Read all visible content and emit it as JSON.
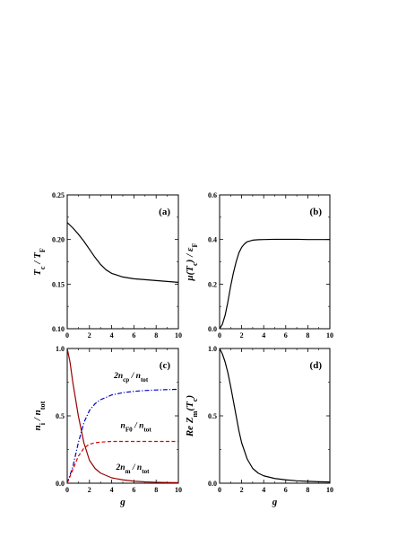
{
  "chart_data": [
    {
      "panel": "a",
      "type": "line",
      "tag": "(a)",
      "xlabel": "",
      "ylabel": "T_c / T_F",
      "xlim": [
        0,
        10
      ],
      "ylim": [
        0.1,
        0.25
      ],
      "xticks": [
        0,
        2,
        4,
        6,
        8,
        10
      ],
      "xtick_labels": [
        "0",
        "2",
        "4",
        "6",
        "8",
        "10"
      ],
      "yticks": [
        0.1,
        0.15,
        0.2,
        0.25
      ],
      "ytick_labels": [
        "0.10",
        "0.15",
        "0.20",
        "0.25"
      ],
      "series": [
        {
          "color": "#000000",
          "dash": "solid",
          "x": [
            0,
            0.5,
            1,
            1.5,
            2,
            2.5,
            3,
            3.5,
            4,
            5,
            6,
            7,
            8,
            9,
            10
          ],
          "y": [
            0.219,
            0.213,
            0.206,
            0.198,
            0.189,
            0.18,
            0.172,
            0.166,
            0.162,
            0.158,
            0.156,
            0.155,
            0.154,
            0.153,
            0.152
          ]
        }
      ]
    },
    {
      "panel": "b",
      "type": "line",
      "tag": "(b)",
      "xlabel": "",
      "ylabel": "μ(T_c) / ε_F",
      "xlim": [
        0,
        10
      ],
      "ylim": [
        0.0,
        0.6
      ],
      "xticks": [
        0,
        2,
        4,
        6,
        8,
        10
      ],
      "xtick_labels": [
        "0",
        "2",
        "4",
        "6",
        "8",
        "10"
      ],
      "yticks": [
        0.0,
        0.2,
        0.4,
        0.6
      ],
      "ytick_labels": [
        "0.0",
        "0.2",
        "0.4",
        "0.6"
      ],
      "series": [
        {
          "color": "#000000",
          "dash": "solid",
          "x": [
            0,
            0.25,
            0.5,
            0.75,
            1,
            1.25,
            1.5,
            1.75,
            2,
            2.25,
            2.5,
            3,
            3.5,
            4,
            5,
            6,
            7,
            8,
            9,
            10
          ],
          "y": [
            0.0,
            0.02,
            0.06,
            0.12,
            0.19,
            0.25,
            0.3,
            0.34,
            0.365,
            0.38,
            0.39,
            0.397,
            0.399,
            0.4,
            0.401,
            0.401,
            0.401,
            0.4,
            0.4,
            0.4
          ]
        }
      ]
    },
    {
      "panel": "c",
      "type": "line",
      "tag": "(c)",
      "xlabel": "g",
      "ylabel": "n_i / n_tot",
      "xlim": [
        0,
        10
      ],
      "ylim": [
        0.0,
        1.0
      ],
      "xticks": [
        0,
        2,
        4,
        6,
        8,
        10
      ],
      "xtick_labels": [
        "0",
        "2",
        "4",
        "6",
        "8",
        "10"
      ],
      "yticks": [
        0.0,
        0.5,
        1.0
      ],
      "ytick_labels": [
        "0.0",
        "0.5",
        "1.0"
      ],
      "annotations": [
        "2n_cp / n_tot",
        "n_F0 / n_tot",
        "2n_m / n_tot"
      ],
      "series": [
        {
          "color": "#0000cc",
          "dash": "dashdot",
          "x": [
            0,
            0.5,
            1,
            1.5,
            2,
            2.5,
            3,
            4,
            5,
            6,
            7,
            8,
            9,
            10
          ],
          "y": [
            0.0,
            0.12,
            0.3,
            0.45,
            0.54,
            0.59,
            0.62,
            0.655,
            0.672,
            0.682,
            0.688,
            0.692,
            0.695,
            0.697
          ]
        },
        {
          "color": "#dd0000",
          "dash": "dashed",
          "x": [
            0,
            0.5,
            1,
            1.5,
            2,
            2.5,
            3,
            4,
            5,
            6,
            7,
            8,
            9,
            10
          ],
          "y": [
            0.0,
            0.1,
            0.2,
            0.26,
            0.29,
            0.3,
            0.305,
            0.31,
            0.31,
            0.31,
            0.31,
            0.31,
            0.31,
            0.31
          ]
        },
        {
          "color": "#990000",
          "dash": "solid",
          "x": [
            0,
            0.25,
            0.5,
            1,
            1.5,
            2,
            2.5,
            3,
            4,
            5,
            6,
            7,
            8,
            9,
            10
          ],
          "y": [
            1.0,
            0.9,
            0.75,
            0.5,
            0.3,
            0.17,
            0.11,
            0.075,
            0.04,
            0.025,
            0.015,
            0.01,
            0.007,
            0.005,
            0.004
          ]
        }
      ]
    },
    {
      "panel": "d",
      "type": "line",
      "tag": "(d)",
      "xlabel": "g",
      "ylabel": "Re Z_m(T_c)",
      "xlim": [
        0,
        10
      ],
      "ylim": [
        0.0,
        1.0
      ],
      "xticks": [
        0,
        2,
        4,
        6,
        8,
        10
      ],
      "xtick_labels": [
        "0",
        "2",
        "4",
        "6",
        "8",
        "10"
      ],
      "yticks": [
        0.0,
        0.5,
        1.0
      ],
      "ytick_labels": [
        "0.0",
        "0.5",
        "1.0"
      ],
      "series": [
        {
          "color": "#000000",
          "dash": "solid",
          "x": [
            0,
            0.25,
            0.5,
            0.75,
            1,
            1.25,
            1.5,
            1.75,
            2,
            2.5,
            3,
            3.5,
            4,
            5,
            6,
            7,
            8,
            9,
            10
          ],
          "y": [
            1.0,
            0.96,
            0.9,
            0.82,
            0.72,
            0.61,
            0.5,
            0.39,
            0.3,
            0.18,
            0.11,
            0.075,
            0.055,
            0.035,
            0.025,
            0.018,
            0.014,
            0.011,
            0.009
          ]
        }
      ]
    }
  ]
}
